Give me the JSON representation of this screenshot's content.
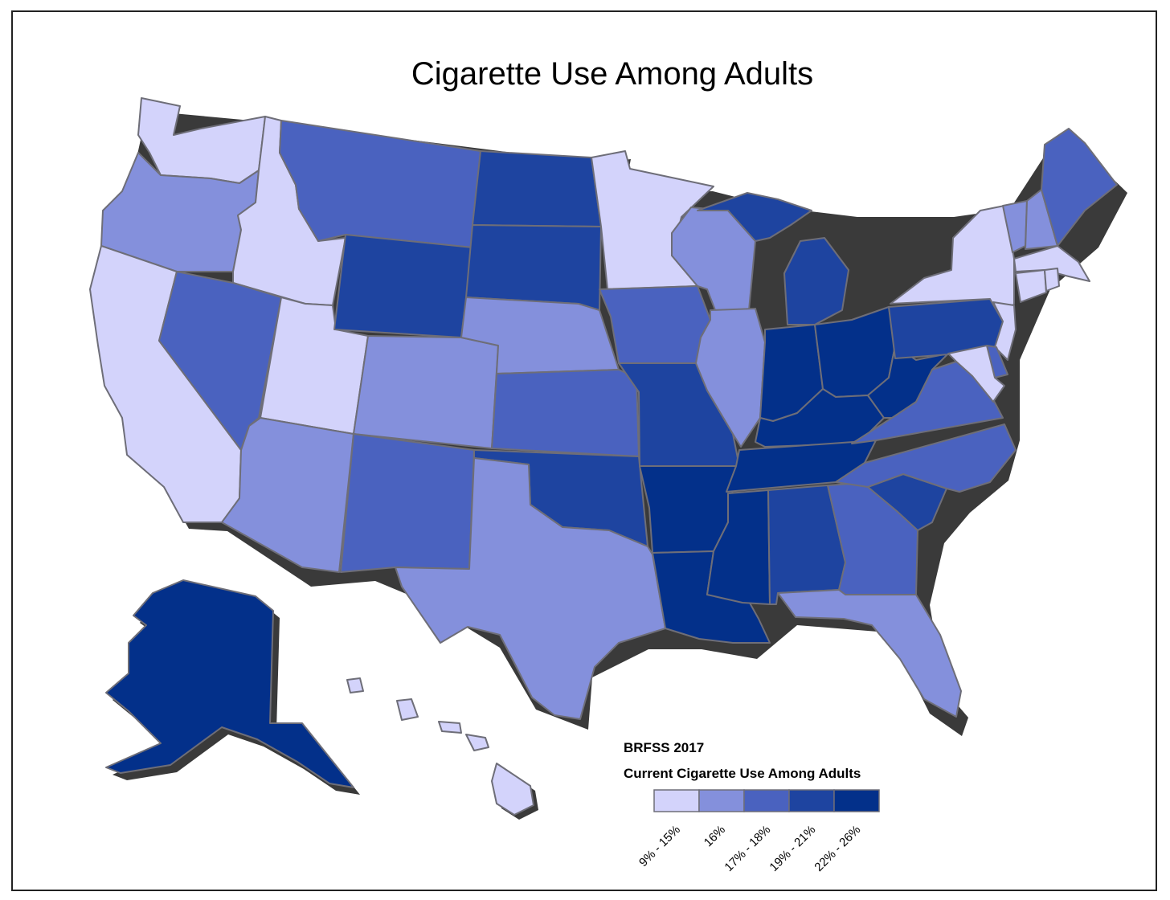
{
  "title": "Cigarette Use Among Adults",
  "legend": {
    "source": "BRFSS 2017",
    "title": "Current Cigarette Use Among Adults",
    "classes": [
      {
        "label": "9% - 15%",
        "color": "#d3d3fb"
      },
      {
        "label": "16%",
        "color": "#8490dc"
      },
      {
        "label": "17% - 18%",
        "color": "#4a62bf"
      },
      {
        "label": "19% - 21%",
        "color": "#1e44a0"
      },
      {
        "label": "22% - 26%",
        "color": "#03308a"
      }
    ]
  },
  "states": {
    "WA": 0,
    "OR": 1,
    "CA": 0,
    "ID": 0,
    "NV": 2,
    "UT": 0,
    "AZ": 1,
    "MT": 2,
    "WY": 3,
    "CO": 1,
    "NM": 2,
    "ND": 3,
    "SD": 3,
    "NE": 1,
    "KS": 2,
    "OK": 3,
    "TX": 1,
    "MN": 0,
    "IA": 2,
    "MO": 3,
    "AR": 4,
    "LA": 4,
    "WI": 1,
    "IL": 1,
    "MI": 3,
    "IN": 4,
    "OH": 4,
    "KY": 4,
    "TN": 4,
    "MS": 4,
    "AL": 3,
    "GA": 2,
    "FL": 1,
    "SC": 3,
    "NC": 2,
    "VA": 2,
    "WV": 4,
    "PA": 3,
    "NY": 0,
    "VT": 1,
    "NH": 1,
    "ME": 2,
    "MA": 0,
    "CT": 0,
    "RI": 0,
    "NJ": 0,
    "DE": 2,
    "MD": 0,
    "AK": 4,
    "HI": 0
  }
}
